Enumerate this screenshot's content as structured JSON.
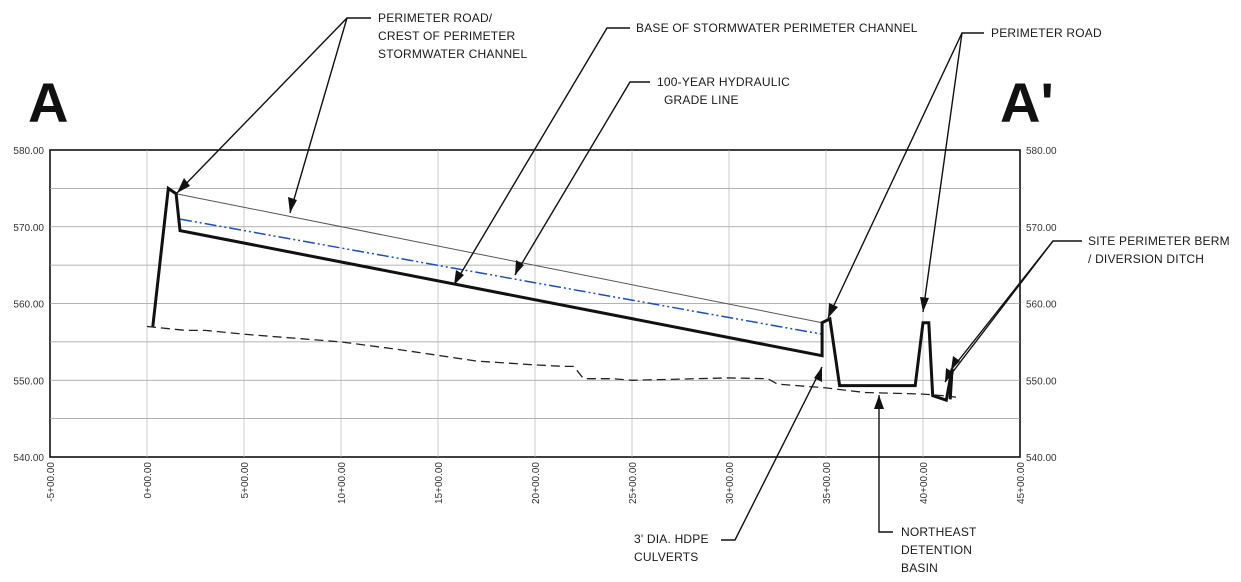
{
  "section": {
    "left_mark": "A",
    "right_mark": "A'"
  },
  "callouts": {
    "perimeter_road_crest": [
      "PERIMETER ROAD/",
      "CREST OF PERIMETER",
      "STORMWATER CHANNEL"
    ],
    "base_channel": [
      "BASE OF STORMWATER PERIMETER CHANNEL"
    ],
    "hgl": [
      "100-YEAR HYDRAULIC",
      "GRADE LINE"
    ],
    "perimeter_road": [
      "PERIMETER ROAD"
    ],
    "berm": [
      "SITE PERIMETER BERM",
      "/ DIVERSION DITCH"
    ],
    "culverts": [
      "3' DIA. HDPE",
      "CULVERTS"
    ],
    "basin": [
      "NORTHEAST",
      "DETENTION",
      "BASIN"
    ]
  },
  "axes": {
    "y_ticks": [
      "580.00",
      "570.00",
      "560.00",
      "550.00",
      "540.00"
    ],
    "x_ticks": [
      "-5+00.00",
      "0+00.00",
      "5+00.00",
      "10+00.00",
      "15+00.00",
      "20+00.00",
      "25+00.00",
      "30+00.00",
      "35+00.00",
      "40+00.00",
      "45+00.00"
    ]
  },
  "colors": {
    "ink": "#111111",
    "hgl": "#1f4fb0",
    "grid": "#9a9a9a"
  },
  "profiles": {
    "existing_ground": [
      [
        0,
        557
      ],
      [
        2,
        556.5
      ],
      [
        3,
        556.5
      ],
      [
        5,
        556
      ],
      [
        10,
        555
      ],
      [
        13,
        554
      ],
      [
        17,
        552.5
      ],
      [
        20,
        552
      ],
      [
        21.5,
        551.8
      ],
      [
        22,
        551.8
      ],
      [
        22.5,
        550.2
      ],
      [
        24,
        550.2
      ],
      [
        25,
        550
      ],
      [
        30,
        550.3
      ],
      [
        32,
        550.2
      ],
      [
        32.5,
        549.5
      ],
      [
        35,
        549
      ],
      [
        37,
        548.4
      ],
      [
        40,
        548.2
      ],
      [
        41,
        548
      ],
      [
        41.7,
        547.8
      ]
    ],
    "channel_base": [
      [
        0.3,
        557
      ],
      [
        1.1,
        575
      ],
      [
        1.5,
        574.3
      ],
      [
        1.7,
        569.5
      ],
      [
        34.8,
        553.2
      ],
      [
        34.8,
        557.5
      ],
      [
        35.2,
        558
      ],
      [
        35.7,
        549.3
      ],
      [
        39.6,
        549.3
      ],
      [
        40.0,
        557.5
      ],
      [
        40.3,
        557.5
      ],
      [
        40.5,
        548
      ],
      [
        41.2,
        547.4
      ],
      [
        41.5,
        551.5
      ],
      [
        41.4,
        547.5
      ]
    ],
    "channel_crest": [
      [
        1.5,
        574.3
      ],
      [
        34.8,
        557.5
      ]
    ],
    "hgl_100yr": [
      [
        1.7,
        571
      ],
      [
        34.8,
        556
      ]
    ]
  }
}
